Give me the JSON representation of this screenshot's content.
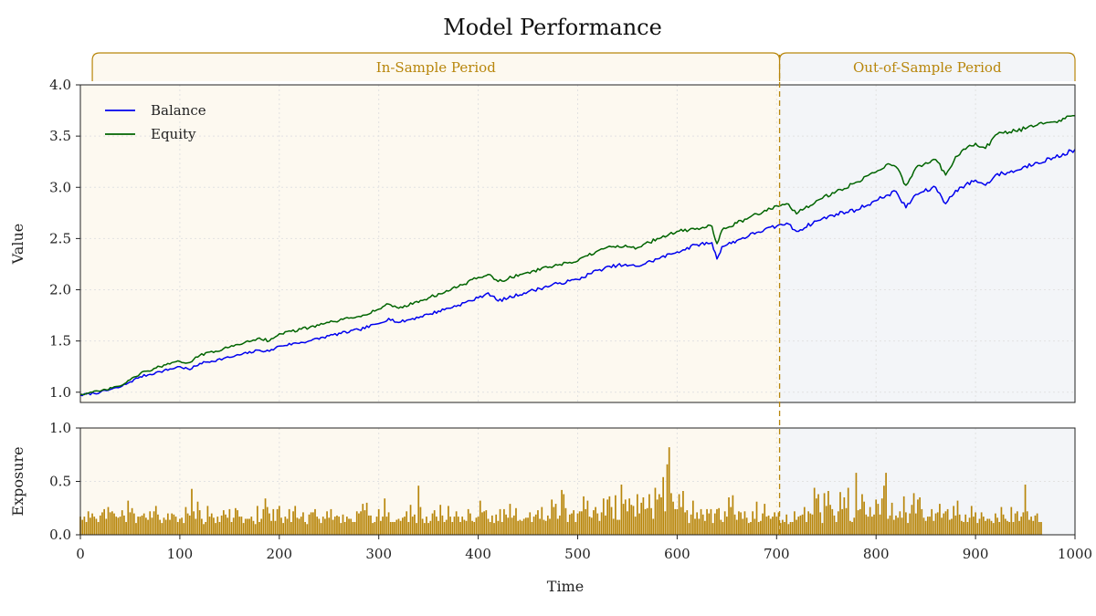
{
  "chart_data": {
    "type": "line",
    "title": "Model Performance",
    "xlabel": "Time",
    "xlim": [
      0,
      1000
    ],
    "x_ticks": [
      0,
      100,
      200,
      300,
      400,
      500,
      600,
      700,
      800,
      900,
      1000
    ],
    "split_x": 703,
    "periods": [
      {
        "label": "In-Sample Period",
        "x_start": 12,
        "x_end": 703,
        "bg": "#fdf9f0"
      },
      {
        "label": "Out-of-Sample Period",
        "x_start": 703,
        "x_end": 1000,
        "bg": "#f3f5f8"
      }
    ],
    "colors": {
      "period_accent": "#b8860b",
      "balance": "#0000ee",
      "equity": "#006400",
      "exposure": "#b8860b"
    },
    "top_panel": {
      "ylabel": "Value",
      "ylim": [
        0.9,
        4.0
      ],
      "y_ticks": [
        "1.0",
        "1.5",
        "2.0",
        "2.5",
        "3.0",
        "3.5",
        "4.0"
      ],
      "legend_placement": "top-left",
      "series": [
        {
          "name": "Balance",
          "x": [
            0,
            20,
            40,
            50,
            60,
            80,
            100,
            110,
            120,
            150,
            180,
            190,
            200,
            230,
            250,
            280,
            300,
            310,
            320,
            350,
            380,
            400,
            410,
            420,
            450,
            480,
            500,
            520,
            540,
            560,
            580,
            600,
            620,
            635,
            640,
            645,
            660,
            680,
            700,
            710,
            720,
            740,
            760,
            780,
            800,
            810,
            820,
            830,
            840,
            860,
            870,
            880,
            900,
            910,
            920,
            940,
            960,
            980,
            1000
          ],
          "values": [
            0.97,
            1.0,
            1.05,
            1.1,
            1.15,
            1.2,
            1.25,
            1.22,
            1.28,
            1.34,
            1.41,
            1.4,
            1.45,
            1.5,
            1.55,
            1.61,
            1.67,
            1.72,
            1.68,
            1.76,
            1.85,
            1.92,
            1.97,
            1.89,
            1.98,
            2.06,
            2.1,
            2.19,
            2.24,
            2.23,
            2.3,
            2.37,
            2.44,
            2.46,
            2.3,
            2.42,
            2.48,
            2.56,
            2.62,
            2.65,
            2.57,
            2.67,
            2.74,
            2.78,
            2.87,
            2.92,
            2.96,
            2.8,
            2.93,
            3.0,
            2.84,
            2.97,
            3.07,
            3.02,
            3.12,
            3.16,
            3.24,
            3.29,
            3.37
          ]
        },
        {
          "name": "Equity",
          "x": [
            0,
            20,
            40,
            50,
            60,
            80,
            100,
            110,
            120,
            150,
            180,
            190,
            200,
            230,
            250,
            280,
            300,
            310,
            320,
            350,
            380,
            400,
            410,
            420,
            450,
            480,
            500,
            520,
            540,
            560,
            580,
            600,
            620,
            635,
            640,
            645,
            660,
            680,
            700,
            710,
            720,
            740,
            760,
            780,
            800,
            810,
            820,
            830,
            840,
            860,
            870,
            880,
            900,
            910,
            920,
            940,
            960,
            980,
            1000
          ],
          "values": [
            0.98,
            1.01,
            1.06,
            1.12,
            1.18,
            1.25,
            1.3,
            1.29,
            1.36,
            1.44,
            1.53,
            1.5,
            1.57,
            1.63,
            1.68,
            1.74,
            1.81,
            1.86,
            1.82,
            1.92,
            2.03,
            2.12,
            2.15,
            2.08,
            2.17,
            2.24,
            2.28,
            2.38,
            2.43,
            2.41,
            2.5,
            2.57,
            2.6,
            2.62,
            2.45,
            2.58,
            2.65,
            2.74,
            2.82,
            2.84,
            2.74,
            2.87,
            2.96,
            3.05,
            3.15,
            3.22,
            3.2,
            3.02,
            3.19,
            3.27,
            3.12,
            3.3,
            3.43,
            3.38,
            3.51,
            3.55,
            3.6,
            3.64,
            3.7
          ]
        }
      ]
    },
    "bottom_panel": {
      "ylabel": "Exposure",
      "ylim": [
        0.0,
        1.0
      ],
      "y_ticks": [
        "0.0",
        "0.5",
        "1.0"
      ],
      "series_name": "Exposure",
      "bar_step": 2,
      "values": [
        0.17,
        0.14,
        0.17,
        0.12,
        0.22,
        0.16,
        0.2,
        0.17,
        0.15,
        0.12,
        0.18,
        0.21,
        0.24,
        0.15,
        0.26,
        0.21,
        0.22,
        0.2,
        0.17,
        0.16,
        0.17,
        0.23,
        0.18,
        0.12,
        0.32,
        0.21,
        0.25,
        0.2,
        0.11,
        0.17,
        0.17,
        0.18,
        0.2,
        0.16,
        0.14,
        0.22,
        0.16,
        0.22,
        0.27,
        0.19,
        0.14,
        0.11,
        0.16,
        0.14,
        0.2,
        0.14,
        0.2,
        0.19,
        0.17,
        0.12,
        0.15,
        0.16,
        0.11,
        0.26,
        0.2,
        0.18,
        0.43,
        0.22,
        0.15,
        0.31,
        0.23,
        0.15,
        0.1,
        0.12,
        0.27,
        0.17,
        0.2,
        0.16,
        0.11,
        0.17,
        0.12,
        0.18,
        0.23,
        0.19,
        0.16,
        0.24,
        0.12,
        0.16,
        0.25,
        0.23,
        0.17,
        0.17,
        0.11,
        0.15,
        0.15,
        0.15,
        0.17,
        0.13,
        0.1,
        0.27,
        0.12,
        0.15,
        0.24,
        0.34,
        0.26,
        0.2,
        0.13,
        0.24,
        0.13,
        0.24,
        0.27,
        0.16,
        0.11,
        0.17,
        0.15,
        0.24,
        0.12,
        0.22,
        0.27,
        0.16,
        0.15,
        0.17,
        0.21,
        0.12,
        0.1,
        0.19,
        0.21,
        0.21,
        0.24,
        0.17,
        0.15,
        0.11,
        0.17,
        0.15,
        0.22,
        0.16,
        0.24,
        0.14,
        0.17,
        0.18,
        0.17,
        0.11,
        0.19,
        0.12,
        0.17,
        0.15,
        0.15,
        0.12,
        0.12,
        0.22,
        0.2,
        0.22,
        0.29,
        0.23,
        0.3,
        0.18,
        0.18,
        0.11,
        0.12,
        0.17,
        0.24,
        0.13,
        0.17,
        0.34,
        0.17,
        0.21,
        0.12,
        0.12,
        0.12,
        0.14,
        0.15,
        0.13,
        0.16,
        0.17,
        0.22,
        0.12,
        0.28,
        0.17,
        0.19,
        0.11,
        0.46,
        0.26,
        0.15,
        0.11,
        0.17,
        0.11,
        0.13,
        0.2,
        0.23,
        0.17,
        0.13,
        0.28,
        0.18,
        0.12,
        0.14,
        0.27,
        0.17,
        0.12,
        0.17,
        0.22,
        0.17,
        0.12,
        0.17,
        0.14,
        0.13,
        0.24,
        0.2,
        0.13,
        0.12,
        0.16,
        0.17,
        0.32,
        0.21,
        0.22,
        0.23,
        0.15,
        0.12,
        0.18,
        0.11,
        0.19,
        0.13,
        0.24,
        0.12,
        0.24,
        0.19,
        0.16,
        0.29,
        0.16,
        0.18,
        0.25,
        0.13,
        0.14,
        0.13,
        0.15,
        0.16,
        0.16,
        0.21,
        0.12,
        0.17,
        0.19,
        0.23,
        0.15,
        0.26,
        0.14,
        0.13,
        0.18,
        0.15,
        0.33,
        0.26,
        0.29,
        0.15,
        0.18,
        0.42,
        0.38,
        0.25,
        0.12,
        0.19,
        0.2,
        0.23,
        0.12,
        0.2,
        0.22,
        0.22,
        0.36,
        0.24,
        0.32,
        0.17,
        0.16,
        0.23,
        0.26,
        0.2,
        0.13,
        0.21,
        0.34,
        0.18,
        0.33,
        0.36,
        0.26,
        0.15,
        0.37,
        0.14,
        0.14,
        0.47,
        0.29,
        0.33,
        0.22,
        0.34,
        0.28,
        0.27,
        0.17,
        0.38,
        0.2,
        0.3,
        0.35,
        0.24,
        0.25,
        0.38,
        0.25,
        0.15,
        0.44,
        0.33,
        0.38,
        0.35,
        0.54,
        0.22,
        0.66,
        0.82,
        0.39,
        0.31,
        0.24,
        0.24,
        0.38,
        0.26,
        0.41,
        0.21,
        0.23,
        0.11,
        0.19,
        0.32,
        0.15,
        0.21,
        0.15,
        0.24,
        0.19,
        0.13,
        0.24,
        0.2,
        0.24,
        0.11,
        0.2,
        0.24,
        0.25,
        0.14,
        0.12,
        0.22,
        0.17,
        0.35,
        0.26,
        0.37,
        0.19,
        0.14,
        0.22,
        0.21,
        0.15,
        0.22,
        0.16,
        0.11,
        0.12,
        0.22,
        0.15,
        0.31,
        0.12,
        0.13,
        0.2,
        0.29,
        0.17,
        0.18,
        0.15,
        0.17,
        0.21,
        0.17,
        0.21,
        0.11,
        0.14,
        0.12,
        0.19,
        0.1,
        0.12,
        0.12,
        0.22,
        0.14,
        0.17,
        0.18,
        0.19,
        0.26,
        0.12,
        0.22,
        0.2,
        0.19,
        0.44,
        0.34,
        0.38,
        0.21,
        0.11,
        0.39,
        0.27,
        0.41,
        0.28,
        0.24,
        0.18,
        0.12,
        0.22,
        0.4,
        0.24,
        0.35,
        0.25,
        0.44,
        0.13,
        0.12,
        0.16,
        0.58,
        0.23,
        0.24,
        0.38,
        0.31,
        0.19,
        0.17,
        0.26,
        0.17,
        0.19,
        0.33,
        0.29,
        0.19,
        0.34,
        0.46,
        0.58,
        0.15,
        0.18,
        0.3,
        0.14,
        0.18,
        0.16,
        0.22,
        0.16,
        0.36,
        0.21,
        0.11,
        0.2,
        0.28,
        0.39,
        0.2,
        0.33,
        0.35,
        0.24,
        0.16,
        0.13,
        0.17,
        0.17,
        0.24,
        0.13,
        0.2,
        0.21,
        0.29,
        0.16,
        0.2,
        0.22,
        0.24,
        0.14,
        0.15,
        0.27,
        0.18,
        0.32,
        0.19,
        0.13,
        0.12,
        0.19,
        0.12,
        0.16,
        0.27,
        0.17,
        0.21,
        0.11,
        0.15,
        0.21,
        0.17,
        0.13,
        0.15,
        0.15,
        0.13,
        0.11,
        0.2,
        0.16,
        0.12,
        0.26,
        0.19,
        0.15,
        0.13,
        0.12,
        0.26,
        0.12,
        0.2,
        0.22,
        0.13,
        0.17,
        0.21,
        0.47,
        0.22,
        0.14,
        0.17,
        0.13,
        0.18,
        0.2,
        0.12,
        0.12
      ]
    }
  }
}
